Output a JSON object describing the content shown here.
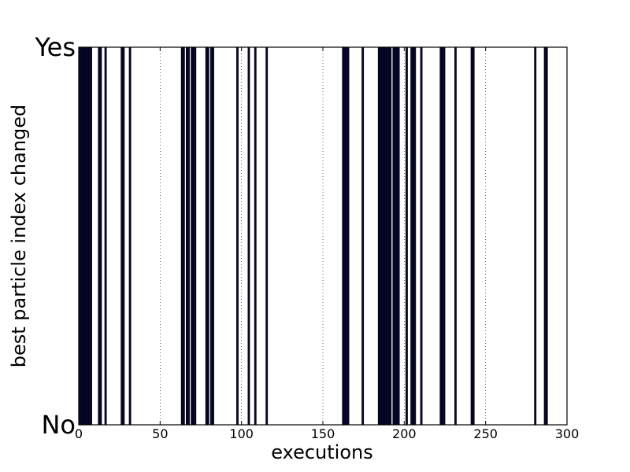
{
  "chart_data": {
    "type": "bar",
    "xlabel": "executions",
    "ylabel": "best particle index changed",
    "xlim": [
      0,
      300
    ],
    "ylim": [
      0,
      1
    ],
    "x_ticks": [
      0,
      50,
      100,
      150,
      200,
      250,
      300
    ],
    "y_tick_labels": [
      "No",
      "Yes"
    ],
    "grid": "vertical dotted",
    "bar_color": "#0a0a40",
    "x": [
      0,
      1,
      2,
      3,
      4,
      5,
      6,
      7,
      12,
      13,
      16,
      26,
      27,
      31,
      63,
      64,
      66,
      67,
      69,
      70,
      71,
      78,
      79,
      81,
      82,
      97,
      104,
      108,
      115,
      162,
      163,
      164,
      165,
      174,
      184,
      185,
      186,
      187,
      188,
      189,
      190,
      191,
      193,
      194,
      195,
      196,
      201,
      204,
      205,
      206,
      210,
      222,
      223,
      224,
      231,
      241,
      242,
      280,
      286,
      287
    ],
    "y": [
      1,
      1,
      1,
      1,
      1,
      1,
      1,
      1,
      1,
      1,
      1,
      1,
      1,
      1,
      1,
      1,
      1,
      1,
      1,
      1,
      1,
      1,
      1,
      1,
      1,
      1,
      1,
      1,
      1,
      1,
      1,
      1,
      1,
      1,
      1,
      1,
      1,
      1,
      1,
      1,
      1,
      1,
      1,
      1,
      1,
      1,
      1,
      1,
      1,
      1,
      1,
      1,
      1,
      1,
      1,
      1,
      1,
      1,
      1,
      1
    ]
  }
}
